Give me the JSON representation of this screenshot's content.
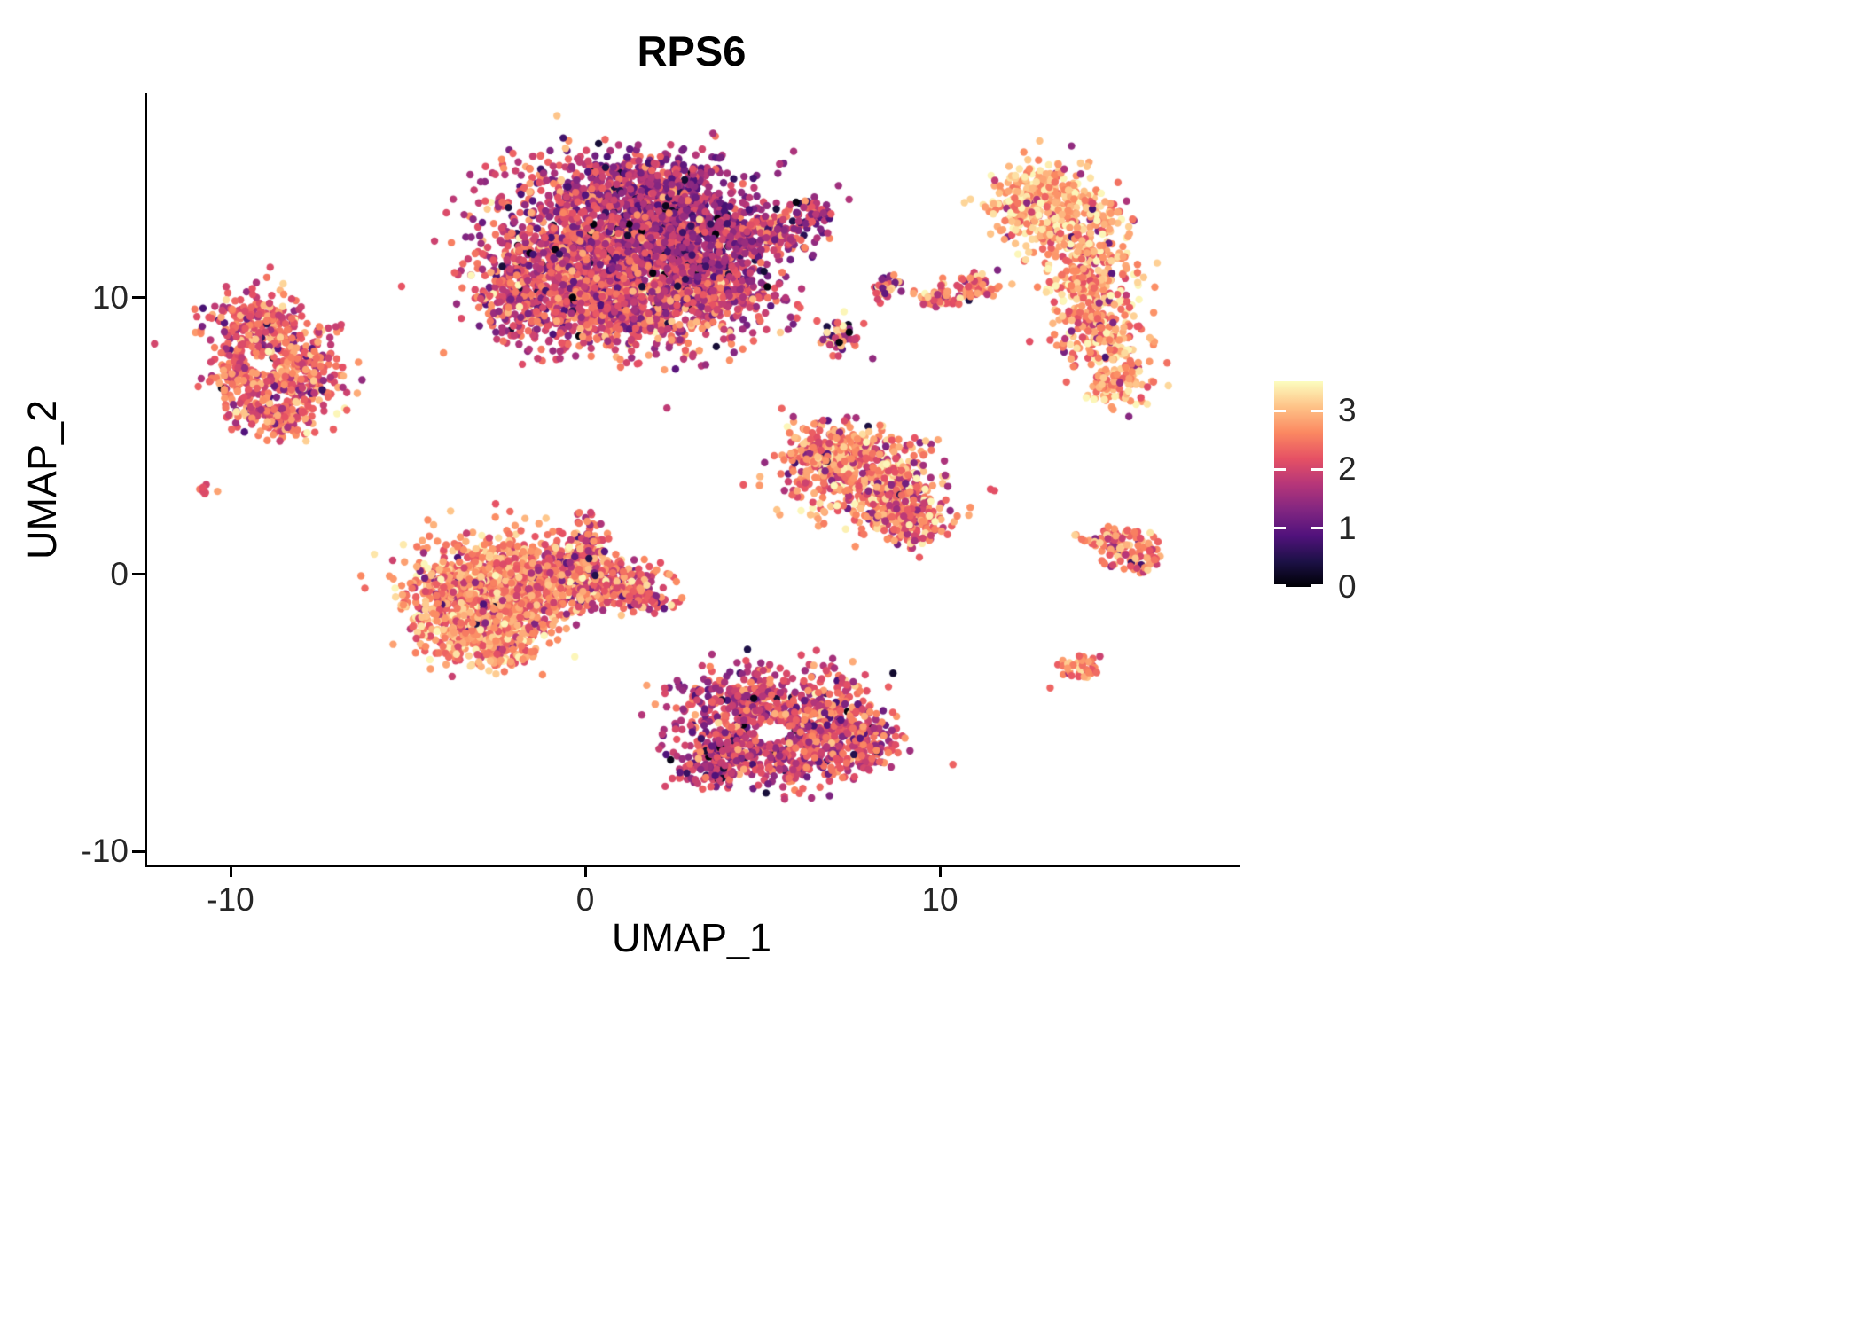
{
  "title": "RPS6",
  "axes": {
    "x": {
      "label": "UMAP_1",
      "ticks": [
        -10,
        0,
        10
      ],
      "tick_labels": [
        "-10",
        "0",
        "10"
      ],
      "range": [
        -12.375,
        18.375
      ]
    },
    "y": {
      "label": "UMAP_2",
      "ticks": [
        10,
        0,
        -10
      ],
      "tick_labels": [
        "10",
        "0",
        "-10"
      ],
      "range": [
        -10.48,
        17.4
      ]
    }
  },
  "legend": {
    "values": [
      3,
      2,
      1,
      0
    ],
    "tick_labels": [
      "3",
      "2",
      "1",
      "0"
    ],
    "min": 0,
    "max": 3.5
  },
  "chart_data": {
    "type": "scatter",
    "title": "RPS6",
    "xlabel": "UMAP_1",
    "ylabel": "UMAP_2",
    "xlim": [
      -12.375,
      18.375
    ],
    "ylim": [
      -10.48,
      17.4
    ],
    "grid": false,
    "legend_position": "right",
    "point_radius_px": 4.2,
    "dark_fraction": 0.05,
    "color_scale": {
      "name": "magma",
      "domain": [
        0,
        3.5
      ],
      "stops": [
        [
          0.0,
          "#000004"
        ],
        [
          0.125,
          "#1D1147"
        ],
        [
          0.25,
          "#51127C"
        ],
        [
          0.375,
          "#822681"
        ],
        [
          0.5,
          "#B63679"
        ],
        [
          0.625,
          "#E65164"
        ],
        [
          0.75,
          "#FB8861"
        ],
        [
          0.875,
          "#FEC287"
        ],
        [
          1.0,
          "#FCFDBF"
        ]
      ]
    },
    "clusters": [
      {
        "name": "top-center-large",
        "blobs": [
          [
            0.2,
            11.8,
            1.6,
            1.5,
            1100,
            2.0,
            0.55
          ],
          [
            2.6,
            12.6,
            1.2,
            1.2,
            900,
            1.55,
            0.45
          ],
          [
            1.2,
            9.6,
            1.7,
            0.8,
            700,
            2.15,
            0.5
          ],
          [
            -1.6,
            10.3,
            0.7,
            0.9,
            250,
            2.1,
            0.5
          ],
          [
            3.6,
            10.6,
            0.9,
            0.7,
            300,
            1.9,
            0.5
          ],
          [
            5.1,
            12.4,
            0.7,
            0.35,
            150,
            1.9,
            0.5
          ],
          [
            6.3,
            13.0,
            0.35,
            0.25,
            60,
            1.8,
            0.5
          ],
          [
            1.0,
            14.2,
            1.3,
            0.5,
            200,
            1.7,
            0.5
          ]
        ]
      },
      {
        "name": "left",
        "holes": [
          [
            -9.1,
            7.6,
            0.35,
            0.3
          ]
        ],
        "blobs": [
          [
            -9.2,
            9.0,
            0.75,
            0.65,
            280,
            2.35,
            0.45
          ],
          [
            -8.2,
            7.2,
            0.7,
            0.8,
            260,
            2.35,
            0.45
          ],
          [
            -9.7,
            7.0,
            0.45,
            0.6,
            140,
            2.4,
            0.45
          ],
          [
            -8.6,
            5.6,
            0.5,
            0.4,
            120,
            2.45,
            0.4
          ]
        ]
      },
      {
        "name": "left-tiny",
        "blobs": [
          [
            -10.75,
            3.1,
            0.12,
            0.12,
            7,
            2.3,
            0.3
          ]
        ]
      },
      {
        "name": "center-left",
        "blobs": [
          [
            -3.3,
            -0.8,
            1.0,
            1.0,
            650,
            2.7,
            0.45
          ],
          [
            -1.8,
            -0.4,
            0.9,
            0.9,
            450,
            2.6,
            0.45
          ],
          [
            -0.5,
            0.0,
            0.8,
            0.6,
            300,
            2.4,
            0.5
          ],
          [
            0.8,
            -0.5,
            0.7,
            0.4,
            200,
            2.35,
            0.5
          ],
          [
            -2.6,
            -2.4,
            0.8,
            0.5,
            220,
            2.75,
            0.4
          ],
          [
            0.1,
            1.2,
            0.25,
            0.5,
            60,
            2.3,
            0.5
          ],
          [
            1.7,
            -0.8,
            0.3,
            0.25,
            60,
            2.3,
            0.5
          ]
        ]
      },
      {
        "name": "center-right",
        "blobs": [
          [
            7.6,
            3.9,
            1.0,
            0.7,
            400,
            2.55,
            0.5
          ],
          [
            8.6,
            2.6,
            0.8,
            0.6,
            280,
            2.5,
            0.55
          ],
          [
            6.7,
            4.5,
            0.5,
            0.4,
            130,
            2.6,
            0.45
          ],
          [
            9.3,
            1.7,
            0.4,
            0.35,
            80,
            2.4,
            0.55
          ]
        ]
      },
      {
        "name": "bottom-center",
        "holes": [
          [
            5.3,
            -5.7,
            0.5,
            0.38
          ]
        ],
        "blobs": [
          [
            4.3,
            -4.7,
            0.9,
            0.7,
            300,
            2.0,
            0.5
          ],
          [
            6.6,
            -5.0,
            1.0,
            0.75,
            320,
            2.15,
            0.5
          ],
          [
            5.6,
            -6.6,
            1.1,
            0.6,
            280,
            2.0,
            0.5
          ],
          [
            3.6,
            -6.5,
            0.6,
            0.6,
            180,
            1.85,
            0.5
          ],
          [
            7.9,
            -6.0,
            0.5,
            0.5,
            120,
            2.1,
            0.5
          ]
        ]
      },
      {
        "name": "right-large",
        "blobs": [
          [
            12.9,
            13.9,
            0.7,
            0.55,
            180,
            3.0,
            0.35
          ],
          [
            13.7,
            12.6,
            0.75,
            0.7,
            220,
            2.85,
            0.4
          ],
          [
            14.3,
            10.8,
            0.65,
            0.8,
            220,
            2.8,
            0.45
          ],
          [
            14.5,
            8.8,
            0.6,
            0.8,
            180,
            2.75,
            0.45
          ],
          [
            15.1,
            7.0,
            0.45,
            0.55,
            100,
            2.8,
            0.4
          ],
          [
            12.3,
            13.0,
            0.4,
            0.5,
            80,
            3.0,
            0.35
          ]
        ]
      },
      {
        "name": "mid-small-a",
        "blobs": [
          [
            8.5,
            10.4,
            0.22,
            0.28,
            35,
            2.2,
            0.8
          ]
        ]
      },
      {
        "name": "mid-small-arc",
        "blobs": [
          [
            10.0,
            10.0,
            0.35,
            0.18,
            45,
            2.55,
            0.5
          ],
          [
            11.0,
            10.4,
            0.45,
            0.22,
            55,
            2.6,
            0.5
          ]
        ]
      },
      {
        "name": "mid-small-b",
        "blobs": [
          [
            7.15,
            8.6,
            0.28,
            0.35,
            45,
            2.0,
            1.0
          ]
        ]
      },
      {
        "name": "right-chevron",
        "blobs": [
          [
            15.0,
            1.3,
            0.5,
            0.22,
            70,
            2.5,
            0.45
          ],
          [
            15.5,
            0.6,
            0.35,
            0.25,
            50,
            2.55,
            0.45
          ]
        ]
      },
      {
        "name": "bottom-right-small",
        "blobs": [
          [
            13.9,
            -3.4,
            0.28,
            0.25,
            40,
            2.5,
            0.4
          ]
        ]
      }
    ]
  }
}
